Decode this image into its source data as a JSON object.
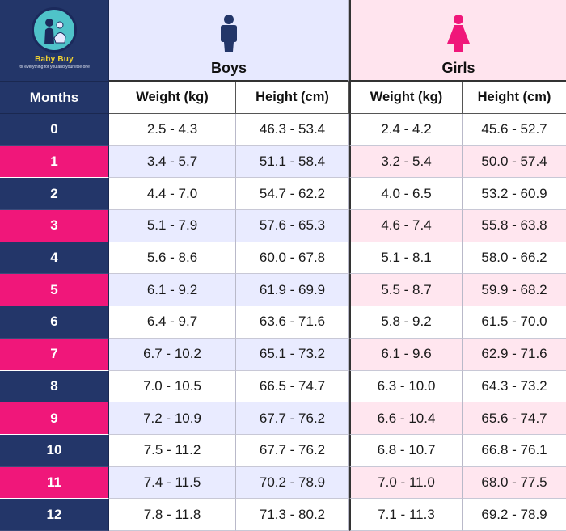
{
  "brand": {
    "name": "Baby Buy",
    "tagline": "for everything for you and your little one"
  },
  "groups": {
    "boys": "Boys",
    "girls": "Girls"
  },
  "icons": {
    "boys": "boy-figure-icon",
    "girls": "girl-figure-icon",
    "logo": "baby-buy-logo"
  },
  "colors": {
    "navy": "#233669",
    "pink": "#f0177a",
    "boys_band": "#e7e9ff",
    "girls_band": "#ffe4ee"
  },
  "headers": {
    "months": "Months",
    "boys_weight": "Weight (kg)",
    "boys_height": "Height (cm)",
    "girls_weight": "Weight (kg)",
    "girls_height": "Height (cm)"
  },
  "rows": [
    {
      "month": "0",
      "boys_weight": "2.5 - 4.3",
      "boys_height": "46.3 - 53.4",
      "girls_weight": "2.4 - 4.2",
      "girls_height": "45.6 - 52.7"
    },
    {
      "month": "1",
      "boys_weight": "3.4 - 5.7",
      "boys_height": "51.1 - 58.4",
      "girls_weight": "3.2 - 5.4",
      "girls_height": "50.0 - 57.4"
    },
    {
      "month": "2",
      "boys_weight": "4.4 - 7.0",
      "boys_height": "54.7 - 62.2",
      "girls_weight": "4.0 - 6.5",
      "girls_height": "53.2 - 60.9"
    },
    {
      "month": "3",
      "boys_weight": "5.1 - 7.9",
      "boys_height": "57.6 - 65.3",
      "girls_weight": "4.6 - 7.4",
      "girls_height": "55.8 - 63.8"
    },
    {
      "month": "4",
      "boys_weight": "5.6 - 8.6",
      "boys_height": "60.0 - 67.8",
      "girls_weight": "5.1 - 8.1",
      "girls_height": "58.0 - 66.2"
    },
    {
      "month": "5",
      "boys_weight": "6.1 - 9.2",
      "boys_height": "61.9 - 69.9",
      "girls_weight": "5.5 - 8.7",
      "girls_height": "59.9 - 68.2"
    },
    {
      "month": "6",
      "boys_weight": "6.4 - 9.7",
      "boys_height": "63.6 - 71.6",
      "girls_weight": "5.8 - 9.2",
      "girls_height": "61.5 - 70.0"
    },
    {
      "month": "7",
      "boys_weight": "6.7 - 10.2",
      "boys_height": "65.1 - 73.2",
      "girls_weight": "6.1 - 9.6",
      "girls_height": "62.9 - 71.6"
    },
    {
      "month": "8",
      "boys_weight": "7.0 - 10.5",
      "boys_height": "66.5 - 74.7",
      "girls_weight": "6.3 - 10.0",
      "girls_height": "64.3 - 73.2"
    },
    {
      "month": "9",
      "boys_weight": "7.2 - 10.9",
      "boys_height": "67.7 - 76.2",
      "girls_weight": "6.6 - 10.4",
      "girls_height": "65.6 - 74.7"
    },
    {
      "month": "10",
      "boys_weight": "7.5 - 11.2",
      "boys_height": "67.7 - 76.2",
      "girls_weight": "6.8 - 10.7",
      "girls_height": "66.8 - 76.1"
    },
    {
      "month": "11",
      "boys_weight": "7.4 - 11.5",
      "boys_height": "70.2 - 78.9",
      "girls_weight": "7.0 - 11.0",
      "girls_height": "68.0 - 77.5"
    },
    {
      "month": "12",
      "boys_weight": "7.8 - 11.8",
      "boys_height": "71.3 - 80.2",
      "girls_weight": "7.1 - 11.3",
      "girls_height": "69.2 - 78.9"
    }
  ]
}
